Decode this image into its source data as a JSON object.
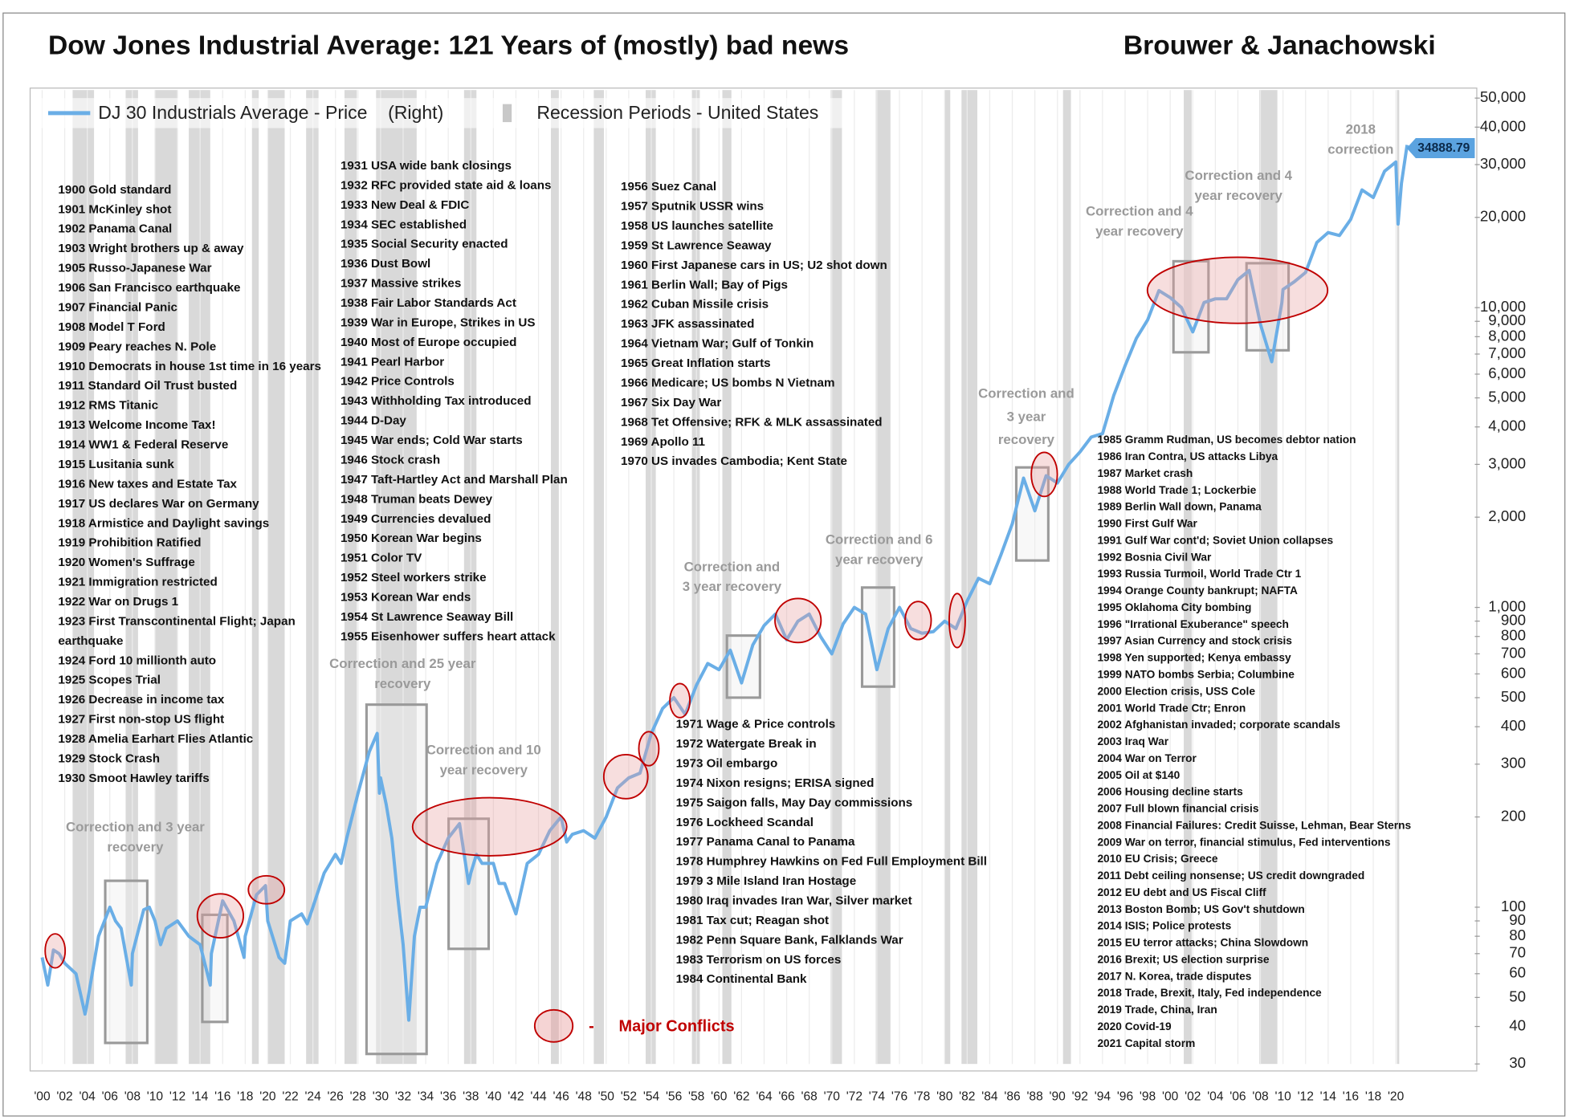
{
  "chart_data": {
    "type": "line",
    "title": "Dow Jones Industrial Average: 121 Years of (mostly) bad news",
    "author": "Brouwer & Janachowski",
    "log_scale": true,
    "grid": true,
    "xlim": [
      1900,
      2027
    ],
    "ylim": [
      30,
      50000
    ],
    "xticks": [
      {
        "value": 1900,
        "label": "'00"
      },
      {
        "value": 1902,
        "label": "'02"
      },
      {
        "value": 1904,
        "label": "'04"
      },
      {
        "value": 1906,
        "label": "'06"
      },
      {
        "value": 1908,
        "label": "'08"
      },
      {
        "value": 1910,
        "label": "'10"
      },
      {
        "value": 1912,
        "label": "'12"
      },
      {
        "value": 1914,
        "label": "'14"
      },
      {
        "value": 1916,
        "label": "'16"
      },
      {
        "value": 1918,
        "label": "'18"
      },
      {
        "value": 1920,
        "label": "'20"
      },
      {
        "value": 1922,
        "label": "'22"
      },
      {
        "value": 1924,
        "label": "'24"
      },
      {
        "value": 1926,
        "label": "'26"
      },
      {
        "value": 1928,
        "label": "'28"
      },
      {
        "value": 1930,
        "label": "'30"
      },
      {
        "value": 1932,
        "label": "'32"
      },
      {
        "value": 1934,
        "label": "'34"
      },
      {
        "value": 1936,
        "label": "'36"
      },
      {
        "value": 1938,
        "label": "'38"
      },
      {
        "value": 1940,
        "label": "'40"
      },
      {
        "value": 1942,
        "label": "'42"
      },
      {
        "value": 1944,
        "label": "'44"
      },
      {
        "value": 1946,
        "label": "'46"
      },
      {
        "value": 1948,
        "label": "'48"
      },
      {
        "value": 1950,
        "label": "'50"
      },
      {
        "value": 1952,
        "label": "'52"
      },
      {
        "value": 1954,
        "label": "'54"
      },
      {
        "value": 1956,
        "label": "'56"
      },
      {
        "value": 1958,
        "label": "'58"
      },
      {
        "value": 1960,
        "label": "'60"
      },
      {
        "value": 1962,
        "label": "'62"
      },
      {
        "value": 1964,
        "label": "'64"
      },
      {
        "value": 1966,
        "label": "'66"
      },
      {
        "value": 1968,
        "label": "'68"
      },
      {
        "value": 1970,
        "label": "'70"
      },
      {
        "value": 1972,
        "label": "'72"
      },
      {
        "value": 1974,
        "label": "'74"
      },
      {
        "value": 1976,
        "label": "'76"
      },
      {
        "value": 1978,
        "label": "'78"
      },
      {
        "value": 1980,
        "label": "'80"
      },
      {
        "value": 1982,
        "label": "'82"
      },
      {
        "value": 1984,
        "label": "'84"
      },
      {
        "value": 1986,
        "label": "'86"
      },
      {
        "value": 1988,
        "label": "'88"
      },
      {
        "value": 1990,
        "label": "'90"
      },
      {
        "value": 1992,
        "label": "'92"
      },
      {
        "value": 1994,
        "label": "'94"
      },
      {
        "value": 1996,
        "label": "'96"
      },
      {
        "value": 1998,
        "label": "'98"
      },
      {
        "value": 2000,
        "label": "'00"
      },
      {
        "value": 2002,
        "label": "'02"
      },
      {
        "value": 2004,
        "label": "'04"
      },
      {
        "value": 2006,
        "label": "'06"
      },
      {
        "value": 2008,
        "label": "'08"
      },
      {
        "value": 2010,
        "label": "'10"
      },
      {
        "value": 2012,
        "label": "'12"
      },
      {
        "value": 2014,
        "label": "'14"
      },
      {
        "value": 2016,
        "label": "'16"
      },
      {
        "value": 2018,
        "label": "'18"
      },
      {
        "value": 2020,
        "label": "'20"
      }
    ],
    "yticks": [
      30,
      40,
      50,
      60,
      70,
      80,
      90,
      100,
      200,
      300,
      400,
      500,
      600,
      700,
      800,
      900,
      {
        "value": 1000,
        "label": "1,000"
      },
      {
        "value": 2000,
        "label": "2,000"
      },
      {
        "value": 3000,
        "label": "3,000"
      },
      {
        "value": 4000,
        "label": "4,000"
      },
      {
        "value": 5000,
        "label": "5,000"
      },
      {
        "value": 6000,
        "label": "6,000"
      },
      {
        "value": 7000,
        "label": "7,000"
      },
      {
        "value": 8000,
        "label": "8,000"
      },
      {
        "value": 9000,
        "label": "9,000"
      },
      {
        "value": 10000,
        "label": "10,000"
      },
      {
        "value": 20000,
        "label": "20,000"
      },
      {
        "value": 30000,
        "label": "30,000"
      },
      {
        "value": 40000,
        "label": "40,000"
      },
      {
        "value": 50000,
        "label": "50,000"
      }
    ],
    "x": [
      1900,
      1900.5,
      1901,
      1901.5,
      1902,
      1903,
      1903.8,
      1904,
      1905,
      1906,
      1906.5,
      1907,
      1907.9,
      1908,
      1909,
      1909.5,
      1910,
      1910.5,
      1911,
      1912,
      1913,
      1914,
      1914.9,
      1915,
      1916,
      1917,
      1917.9,
      1918,
      1919,
      1919.8,
      1920,
      1921,
      1921.5,
      1922,
      1923,
      1923.5,
      1924,
      1925,
      1926,
      1926.5,
      1927,
      1928,
      1929,
      1929.7,
      1929.9,
      1930,
      1930.5,
      1931,
      1931.5,
      1932,
      1932.5,
      1933,
      1933.5,
      1934,
      1935,
      1936,
      1937,
      1937.8,
      1938,
      1938.5,
      1939,
      1940,
      1940.5,
      1941,
      1942,
      1943,
      1944,
      1945,
      1946,
      1946.5,
      1947,
      1948,
      1949,
      1950,
      1951,
      1952,
      1953,
      1954,
      1955,
      1956,
      1957,
      1958,
      1959,
      1960,
      1961,
      1962,
      1963,
      1964,
      1965,
      1966,
      1967,
      1968,
      1969,
      1970,
      1971,
      1972,
      1973,
      1974,
      1975,
      1976,
      1977,
      1978,
      1979,
      1980,
      1981,
      1982,
      1983,
      1984,
      1985,
      1986,
      1987,
      1988,
      1989,
      1990,
      1991,
      1992,
      1993,
      1994,
      1995,
      1996,
      1997,
      1998,
      1999,
      2000,
      2001,
      2002,
      2003,
      2004,
      2005,
      2006,
      2007,
      2008,
      2009,
      2009.9,
      2010,
      2011,
      2012,
      2013,
      2014,
      2015,
      2016,
      2017,
      2018,
      2019,
      2020,
      2020.2,
      2020.5,
      2021
    ],
    "series": [
      {
        "name": "DJ 30 Industrials Average - Price    (Right)",
        "color": "#6aaee6",
        "values": [
          68,
          55,
          72,
          70,
          65,
          60,
          44,
          48,
          80,
          100,
          90,
          85,
          55,
          70,
          98,
          100,
          90,
          75,
          85,
          90,
          80,
          75,
          55,
          70,
          105,
          90,
          68,
          80,
          110,
          118,
          90,
          68,
          65,
          90,
          95,
          88,
          100,
          130,
          150,
          140,
          170,
          240,
          330,
          380,
          240,
          270,
          220,
          170,
          110,
          75,
          42,
          80,
          100,
          100,
          140,
          170,
          190,
          120,
          130,
          150,
          140,
          140,
          120,
          120,
          95,
          140,
          150,
          180,
          200,
          165,
          175,
          180,
          170,
          200,
          250,
          270,
          280,
          380,
          460,
          500,
          440,
          550,
          650,
          620,
          720,
          560,
          750,
          870,
          950,
          780,
          900,
          950,
          800,
          700,
          880,
          1000,
          950,
          620,
          850,
          1000,
          850,
          820,
          830,
          900,
          850,
          1050,
          1250,
          1200,
          1500,
          1900,
          2700,
          2100,
          2750,
          2600,
          3000,
          3300,
          3700,
          3800,
          5100,
          6400,
          7900,
          9100,
          11400,
          10800,
          10000,
          8300,
          10400,
          10700,
          10700,
          12400,
          13300,
          8800,
          6600,
          10400,
          11500,
          12200,
          13100,
          16500,
          17800,
          17400,
          19700,
          24700,
          23300,
          28500,
          30600,
          19000,
          26000,
          34888.79
        ]
      }
    ],
    "end_label": 34888.79,
    "recessions": {
      "name": "Recession Periods - United States",
      "color": "#d9d9d9",
      "periods": [
        [
          1902.7,
          1904.6
        ],
        [
          1907.4,
          1908.5
        ],
        [
          1910,
          1912
        ],
        [
          1913,
          1914.9
        ],
        [
          1918.6,
          1919.2
        ],
        [
          1920,
          1921.5
        ],
        [
          1923.4,
          1924.5
        ],
        [
          1926.8,
          1927.9
        ],
        [
          1929.6,
          1933.2
        ],
        [
          1937.4,
          1938.5
        ],
        [
          1945.1,
          1945.8
        ],
        [
          1948.9,
          1949.8
        ],
        [
          1953.5,
          1954.4
        ],
        [
          1957.6,
          1958.3
        ],
        [
          1960.3,
          1961.1
        ],
        [
          1969.9,
          1970.9
        ],
        [
          1973.9,
          1975.2
        ],
        [
          1980,
          1980.5
        ],
        [
          1981.5,
          1982.9
        ],
        [
          1990.5,
          1991.2
        ],
        [
          2001.2,
          2001.9
        ],
        [
          2007.9,
          2009.5
        ],
        [
          2020.1,
          2020.3
        ]
      ]
    },
    "events": [
      [
        "1900 Gold standard",
        "1901 McKinley shot",
        "1902 Panama Canal",
        "1903 Wright brothers up & away",
        "1905 Russo-Japanese War",
        "1906 San Francisco earthquake",
        "1907 Financial Panic",
        "1908 Model T Ford",
        "1909 Peary reaches N. Pole",
        "1910 Democrats in house 1st time in 16 years",
        "1911 Standard Oil Trust busted",
        "1912 RMS Titanic",
        "1913 Welcome Income Tax!",
        "1914 WW1 & Federal Reserve",
        "1915 Lusitania sunk",
        "1916 New taxes and Estate Tax",
        "1917 US declares War on Germany",
        "1918 Armistice and Daylight savings",
        "1919 Prohibition Ratified",
        "1920 Women's Suffrage",
        "1921 Immigration restricted",
        "1922 War on Drugs 1",
        "1923 First Transcontinental Flight; Japan",
        "earthquake",
        "1924 Ford 10 millionth auto",
        "1925 Scopes Trial",
        "1926 Decrease in income tax",
        "1927 First non-stop US flight",
        "1928 Amelia Earhart Flies Atlantic",
        "1929 Stock Crash",
        "1930 Smoot Hawley tariffs"
      ],
      [
        "1931 USA wide bank closings",
        "1932 RFC provided state aid & loans",
        "1933 New Deal & FDIC",
        "1934 SEC established",
        "1935 Social Security enacted",
        "1936 Dust Bowl",
        "1937 Massive strikes",
        "1938 Fair Labor Standards Act",
        "1939 War in Europe, Strikes in US",
        "1940 Most of Europe occupied",
        "1941 Pearl Harbor",
        "1942 Price Controls",
        "1943 Withholding Tax introduced",
        "1944 D-Day",
        "1945 War ends; Cold War starts",
        "1946 Stock crash",
        "1947 Taft-Hartley Act and Marshall Plan",
        "1948 Truman beats Dewey",
        "1949 Currencies devalued",
        "1950 Korean War begins",
        "1951 Color TV",
        "1952 Steel workers strike",
        "1953 Korean War ends",
        "1954 St Lawrence Seaway Bill",
        "1955 Eisenhower suffers heart attack"
      ],
      [
        "1956 Suez Canal",
        "1957 Sputnik USSR wins",
        "1958 US launches satellite",
        "1959 St Lawrence Seaway",
        "1960 First Japanese cars in US; U2 shot down",
        "1961 Berlin Wall; Bay of Pigs",
        "1962 Cuban Missile crisis",
        "1963 JFK assassinated",
        "1964 Vietnam War; Gulf of Tonkin",
        "1965 Great Inflation starts",
        "1966 Medicare; US bombs N Vietnam",
        "1967 Six Day War",
        "1968 Tet Offensive; RFK & MLK assassinated",
        "1969 Apollo 11",
        "1970 US invades Cambodia; Kent State"
      ],
      [
        "1971 Wage & Price controls",
        "1972 Watergate Break in",
        "1973 Oil embargo",
        "1974 Nixon resigns; ERISA signed",
        "1975 Saigon falls, May Day commissions",
        "1976 Lockheed Scandal",
        "1977 Panama Canal to Panama",
        "1978 Humphrey Hawkins on Fed Full Employment Bill",
        "1979 3 Mile Island Iran Hostage",
        "1980 Iraq invades Iran War, Silver market",
        "1981 Tax cut; Reagan shot",
        "1982 Penn Square Bank, Falklands War",
        "1983 Terrorism on US forces",
        "1984 Continental Bank"
      ],
      [
        "1985 Gramm Rudman, US becomes debtor nation",
        "1986 Iran Contra, US attacks Libya",
        "1987 Market crash",
        "1988 World Trade 1; Lockerbie",
        "1989 Berlin Wall down, Panama",
        "1990 First Gulf War",
        "1991 Gulf War cont'd; Soviet Union collapses",
        "1992 Bosnia Civil War",
        "1993 Russia Turmoil, World Trade Ctr 1",
        "1994 Orange County bankrupt; NAFTA",
        "1995 Oklahoma City bombing",
        "1996 \"Irrational Exuberance\" speech",
        "1997 Asian Currency and stock crisis",
        "1998 Yen supported; Kenya embassy",
        "1999 NATO bombs Serbia; Columbine",
        "2000 Election crisis, USS Cole",
        "2001 World Trade Ctr; Enron",
        "2002 Afghanistan invaded; corporate scandals",
        "2003 Iraq War",
        "2004 War on Terror",
        "2005 Oil at $140",
        "2006 Housing decline starts",
        "2007 Full blown financial crisis",
        "2008 Financial Failures: Credit Suisse, Lehman, Bear Sterns",
        "2009 War on terror, financial stimulus, Fed interventions",
        "2010 EU Crisis; Greece",
        "2011 Debt ceiling nonsense; US credit downgraded",
        "2012 EU debt and US Fiscal Cliff",
        "2013 Boston Bomb; US Gov't shutdown",
        "2014 ISIS; Police protests",
        "2015 EU terror attacks; China Slowdown",
        "2016 Brexit; US election surprise",
        "2017 N. Korea, trade disputes",
        "2018 Trade, Brexit, Italy, Fed independence",
        "2019 Trade, China, Iran",
        "2020 Covid-19",
        "2021 Capital storm"
      ]
    ],
    "corrections": [
      [
        "Correction and 3 year",
        "recovery"
      ],
      [
        "Correction and 25 year",
        "recovery"
      ],
      [
        "Correction and 10",
        "year recovery"
      ],
      [
        "Correction and",
        "3 year recovery"
      ],
      [
        "Correction and 6",
        "year recovery"
      ],
      [
        "Correction and",
        "3 year",
        "recovery"
      ],
      [
        "Correction and 4",
        "year recovery"
      ],
      [
        "Correction and 4",
        "year recovery"
      ]
    ],
    "note": [
      "2018",
      "correction"
    ],
    "conflicts_legend": {
      "dash": "-",
      "label": "Major Conflicts"
    }
  }
}
